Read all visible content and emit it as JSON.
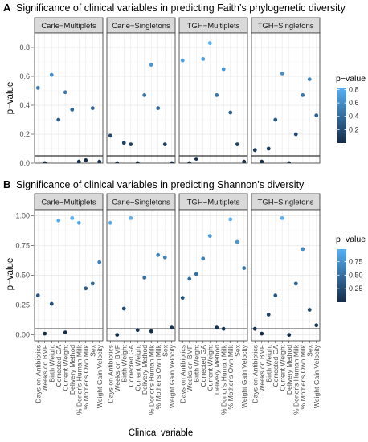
{
  "chart_data": [
    {
      "type": "scatter",
      "panel_label": "A",
      "title": "Significance of clinical variables in predicting Faith’s phylogenetic diversity",
      "ylabel": "p−value",
      "ylim": [
        0,
        0.9
      ],
      "y_ticks": [
        0.0,
        0.2,
        0.4,
        0.6,
        0.8
      ],
      "y_tick_labels": [
        "0.0",
        "0.2",
        "0.4",
        "0.6",
        "0.8"
      ],
      "reference_line": 0.05,
      "categories": [
        "Days on Antibiotics",
        "Weeks on BMF",
        "Birth Weight",
        "Corrected GA",
        "Current Weight",
        "Delivery Method",
        "% Donor's Human Milk",
        "% Mother's Own Milk",
        "Sex",
        "Weight Gain Velocity"
      ],
      "facets": [
        "Carle−Multiplets",
        "Carle−Singletons",
        "TGH−Multiplets",
        "TGH−Singletons"
      ],
      "series": [
        {
          "values": [
            0.52,
            0.0,
            0.61,
            0.3,
            0.49,
            0.37,
            0.01,
            0.02,
            0.38,
            0.01
          ]
        },
        {
          "values": [
            0.19,
            0.0,
            0.14,
            0.13,
            0.0,
            0.47,
            0.68,
            0.38,
            0.13,
            0.0
          ]
        },
        {
          "values": [
            0.71,
            0.0,
            0.03,
            0.72,
            0.83,
            0.47,
            0.65,
            0.35,
            0.13,
            0.01
          ]
        },
        {
          "values": [
            0.09,
            0.01,
            0.1,
            0.3,
            0.62,
            0.0,
            0.2,
            0.47,
            0.58,
            0.33
          ]
        }
      ],
      "legend": {
        "title": "p−value",
        "ticks": [
          0.2,
          0.4,
          0.6,
          0.8
        ],
        "tick_labels": [
          "0.2",
          "0.4",
          "0.6",
          "0.8"
        ],
        "range": [
          0,
          0.83
        ],
        "position": "right"
      },
      "grid": true
    },
    {
      "type": "scatter",
      "panel_label": "B",
      "title": "Significance of clinical variables in predicting Shannon’s diversity",
      "ylabel": "p−value",
      "ylim": [
        -0.05,
        1.05
      ],
      "y_ticks": [
        0.0,
        0.25,
        0.5,
        0.75,
        1.0
      ],
      "y_tick_labels": [
        "0.00",
        "0.25",
        "0.50",
        "0.75",
        "1.00"
      ],
      "reference_line": 0.05,
      "xlabel": "Clinical variable",
      "categories": [
        "Days on Antibiotics",
        "Weeks on BMF",
        "Birth Weight",
        "Corrected GA",
        "Current Weight",
        "Delivery Method",
        "% Donor's Human Milk",
        "% Mother's Own Milk",
        "Sex",
        "Weight Gain Velocity"
      ],
      "facets": [
        "Carle−Multiplets",
        "Carle−Singletons",
        "TGH−Multiplets",
        "TGH−Singletons"
      ],
      "series": [
        {
          "values": [
            0.33,
            0.01,
            0.26,
            0.96,
            0.02,
            0.98,
            0.94,
            0.39,
            0.43,
            0.61
          ]
        },
        {
          "values": [
            0.94,
            0.0,
            0.22,
            0.98,
            0.04,
            0.48,
            0.03,
            0.67,
            0.65,
            0.06
          ]
        },
        {
          "values": [
            0.31,
            0.47,
            0.51,
            0.64,
            0.83,
            0.06,
            0.05,
            0.97,
            0.78,
            0.56
          ]
        },
        {
          "values": [
            0.05,
            0.01,
            0.17,
            0.33,
            0.98,
            0.0,
            0.43,
            0.72,
            0.21,
            0.08
          ]
        }
      ],
      "legend": {
        "title": "p−value",
        "ticks": [
          0.25,
          0.5,
          0.75
        ],
        "tick_labels": [
          "0.25",
          "0.50",
          "0.75"
        ],
        "range": [
          0,
          0.98
        ],
        "position": "right"
      },
      "grid": true
    }
  ]
}
